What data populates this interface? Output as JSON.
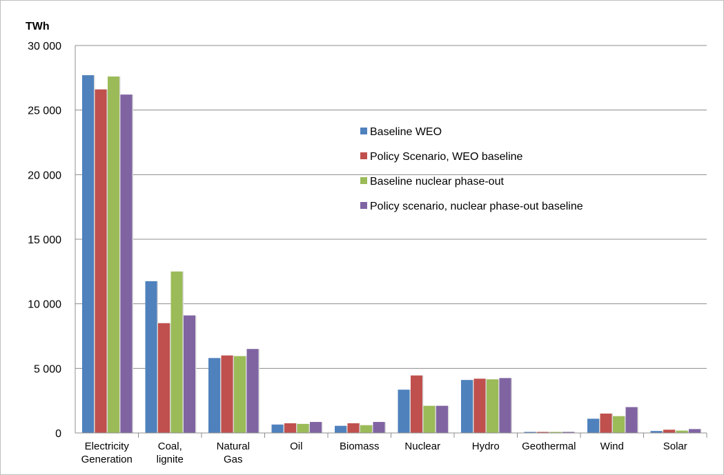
{
  "chart_data": {
    "type": "bar",
    "unit_label": "TWh",
    "categories": [
      [
        "Electricity",
        "Generation"
      ],
      [
        "Coal,",
        "lignite"
      ],
      [
        "Natural",
        "Gas"
      ],
      [
        "Oil"
      ],
      [
        "Biomass"
      ],
      [
        "Nuclear"
      ],
      [
        "Hydro"
      ],
      [
        "Geothermal"
      ],
      [
        "Wind"
      ],
      [
        "Solar"
      ]
    ],
    "series": [
      {
        "name": "Baseline WEO",
        "color": "#4f81bd",
        "values": [
          27700,
          11750,
          5800,
          650,
          550,
          3350,
          4100,
          80,
          1100,
          150
        ]
      },
      {
        "name": "Policy Scenario, WEO baseline",
        "color": "#c0504d",
        "values": [
          26600,
          8500,
          6000,
          750,
          750,
          4450,
          4200,
          80,
          1500,
          250
        ]
      },
      {
        "name": "Baseline nuclear phase-out",
        "color": "#9bbb59",
        "values": [
          27600,
          12500,
          5950,
          700,
          600,
          2100,
          4150,
          80,
          1300,
          180
        ]
      },
      {
        "name": "Policy scenario, nuclear phase-out baseline",
        "color": "#8064a2",
        "values": [
          26200,
          9100,
          6500,
          850,
          850,
          2100,
          4250,
          80,
          2000,
          300
        ]
      }
    ],
    "yticks": [
      "0",
      "5 000",
      "10 000",
      "15 000",
      "20 000",
      "25 000",
      "30 000"
    ],
    "ylim": [
      0,
      30000
    ],
    "grid": true,
    "legend_position": "top-right (inside plot)"
  }
}
